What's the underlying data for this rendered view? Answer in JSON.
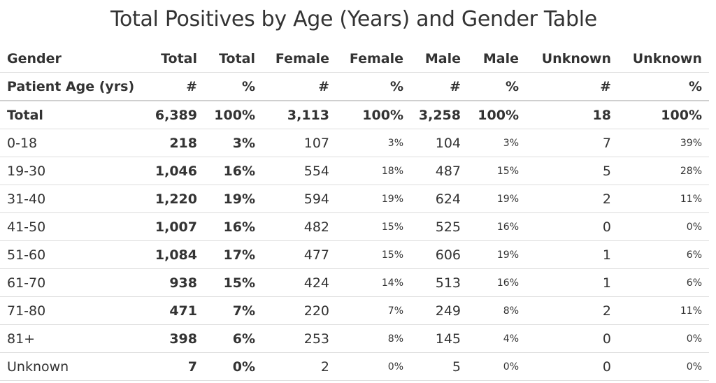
{
  "title": "Total Positives by Age (Years) and Gender Table",
  "header_row_1": [
    "Gender",
    "Total",
    "Total",
    "Female",
    "Female",
    "Male",
    "Male",
    "Unknown",
    "Unknown"
  ],
  "header_row_2": [
    "Patient Age (yrs)",
    "#",
    "%",
    "#",
    "%",
    "#",
    "%",
    "#",
    "%"
  ],
  "rows": [
    {
      "age": "Total",
      "total_n": "6,389",
      "total_pct": "100%",
      "female_n": "3,113",
      "female_pct": "100%",
      "male_n": "3,258",
      "male_pct": "100%",
      "unknown_n": "18",
      "unknown_pct": "100%"
    },
    {
      "age": "0-18",
      "total_n": "218",
      "total_pct": "3%",
      "female_n": "107",
      "female_pct": "3%",
      "male_n": "104",
      "male_pct": "3%",
      "unknown_n": "7",
      "unknown_pct": "39%"
    },
    {
      "age": "19-30",
      "total_n": "1,046",
      "total_pct": "16%",
      "female_n": "554",
      "female_pct": "18%",
      "male_n": "487",
      "male_pct": "15%",
      "unknown_n": "5",
      "unknown_pct": "28%"
    },
    {
      "age": "31-40",
      "total_n": "1,220",
      "total_pct": "19%",
      "female_n": "594",
      "female_pct": "19%",
      "male_n": "624",
      "male_pct": "19%",
      "unknown_n": "2",
      "unknown_pct": "11%"
    },
    {
      "age": "41-50",
      "total_n": "1,007",
      "total_pct": "16%",
      "female_n": "482",
      "female_pct": "15%",
      "male_n": "525",
      "male_pct": "16%",
      "unknown_n": "0",
      "unknown_pct": "0%"
    },
    {
      "age": "51-60",
      "total_n": "1,084",
      "total_pct": "17%",
      "female_n": "477",
      "female_pct": "15%",
      "male_n": "606",
      "male_pct": "19%",
      "unknown_n": "1",
      "unknown_pct": "6%"
    },
    {
      "age": "61-70",
      "total_n": "938",
      "total_pct": "15%",
      "female_n": "424",
      "female_pct": "14%",
      "male_n": "513",
      "male_pct": "16%",
      "unknown_n": "1",
      "unknown_pct": "6%"
    },
    {
      "age": "71-80",
      "total_n": "471",
      "total_pct": "7%",
      "female_n": "220",
      "female_pct": "7%",
      "male_n": "249",
      "male_pct": "8%",
      "unknown_n": "2",
      "unknown_pct": "11%"
    },
    {
      "age": "81+",
      "total_n": "398",
      "total_pct": "6%",
      "female_n": "253",
      "female_pct": "8%",
      "male_n": "145",
      "male_pct": "4%",
      "unknown_n": "0",
      "unknown_pct": "0%"
    },
    {
      "age": "Unknown",
      "total_n": "7",
      "total_pct": "0%",
      "female_n": "2",
      "female_pct": "0%",
      "male_n": "5",
      "male_pct": "0%",
      "unknown_n": "0",
      "unknown_pct": "0%"
    }
  ]
}
